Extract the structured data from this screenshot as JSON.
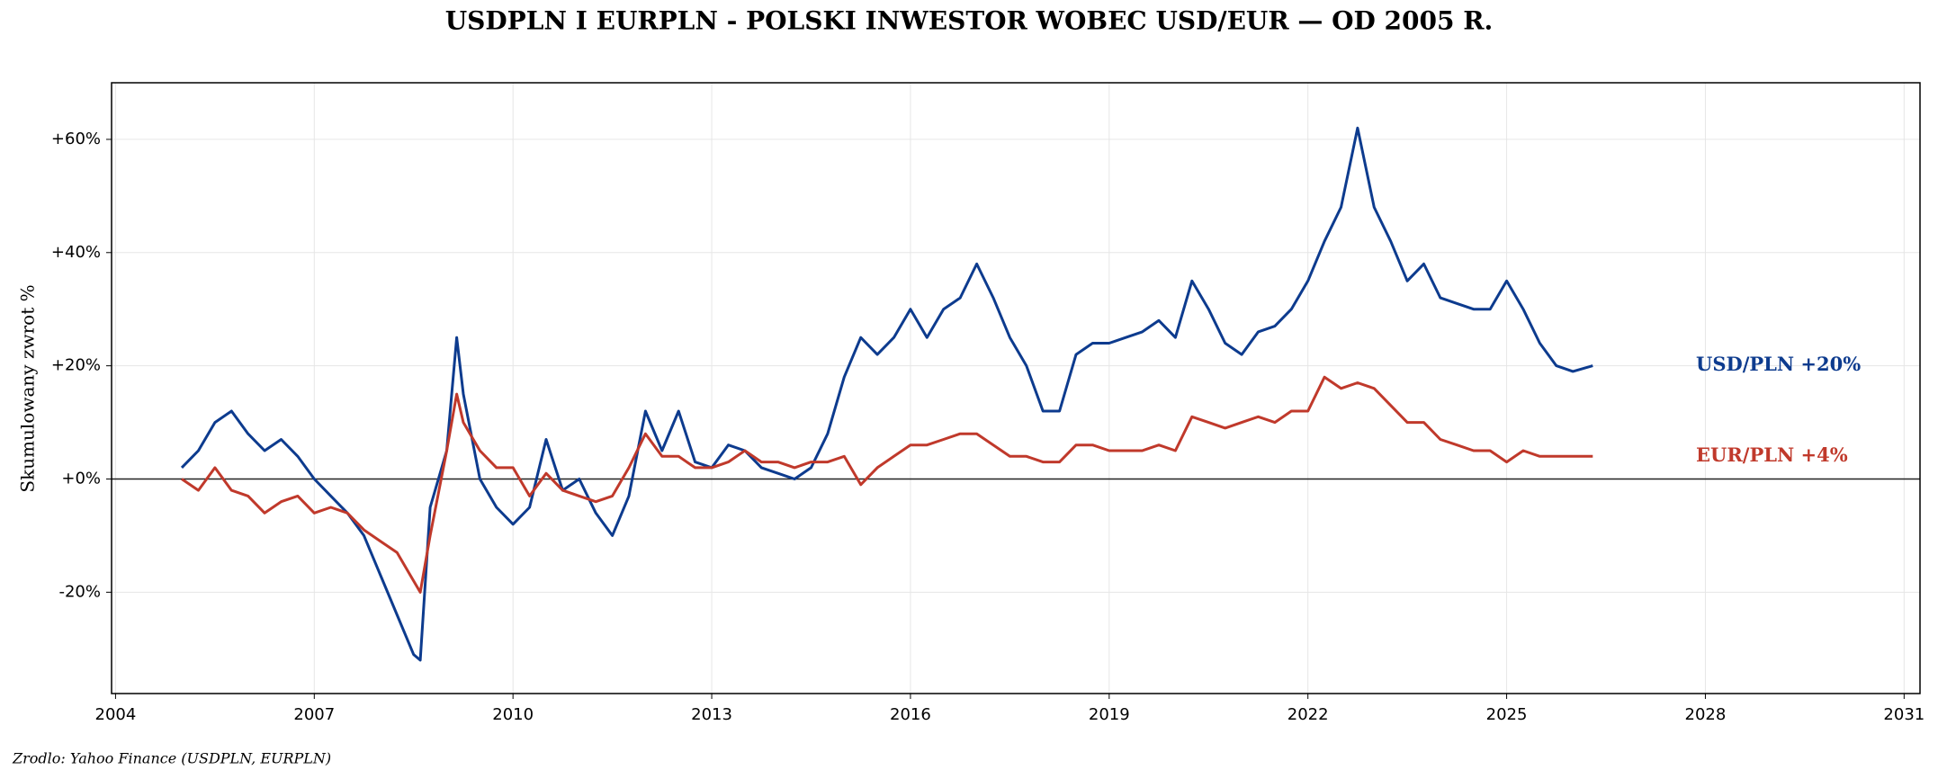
{
  "chart_data": {
    "type": "line",
    "title": "USDPLN I EURPLN - POLSKI INWESTOR WOBEC USD/EUR — OD 2005 R.",
    "ylabel": "Skumulowany zwrot %",
    "source": "Zrodlo: Yahoo Finance (USDPLN, EURPLN)",
    "grid": true,
    "xlim": [
      2003.94,
      2031.24
    ],
    "xticks": [
      2004,
      2007,
      2010,
      2013,
      2016,
      2019,
      2022,
      2025,
      2028,
      2031
    ],
    "ylim": [
      -37.9,
      70
    ],
    "yticks": [
      {
        "value": -20,
        "label": "-20%"
      },
      {
        "value": 0,
        "label": "+0%"
      },
      {
        "value": 20,
        "label": "+20%"
      },
      {
        "value": 40,
        "label": "+40%"
      },
      {
        "value": 60,
        "label": "+60%"
      }
    ],
    "x": [
      2005,
      2005.25,
      2005.5,
      2005.75,
      2006,
      2006.25,
      2006.5,
      2006.75,
      2007,
      2007.25,
      2007.5,
      2007.75,
      2008,
      2008.25,
      2008.5,
      2008.6,
      2008.75,
      2009,
      2009.15,
      2009.25,
      2009.5,
      2009.75,
      2010,
      2010.25,
      2010.5,
      2010.75,
      2011,
      2011.25,
      2011.5,
      2011.75,
      2012,
      2012.25,
      2012.5,
      2012.75,
      2013,
      2013.25,
      2013.5,
      2013.75,
      2014,
      2014.25,
      2014.5,
      2014.75,
      2015,
      2015.25,
      2015.5,
      2015.75,
      2016,
      2016.25,
      2016.5,
      2016.75,
      2017,
      2017.25,
      2017.5,
      2017.75,
      2018,
      2018.25,
      2018.5,
      2018.75,
      2019,
      2019.25,
      2019.5,
      2019.75,
      2020,
      2020.25,
      2020.5,
      2020.75,
      2021,
      2021.25,
      2021.5,
      2021.75,
      2022,
      2022.25,
      2022.5,
      2022.75,
      2023,
      2023.25,
      2023.5,
      2023.75,
      2024,
      2024.25,
      2024.5,
      2024.75,
      2025,
      2025.25,
      2025.5,
      2025.75,
      2026,
      2026.3
    ],
    "series": [
      {
        "label": "USD/PLN  +20%",
        "color": "#0d3b8e",
        "values": [
          2,
          5,
          10,
          12,
          8,
          5,
          7,
          4,
          0,
          -3,
          -6,
          -10,
          -17,
          -24,
          -31,
          -32,
          -5,
          5,
          25,
          15,
          0,
          -5,
          -8,
          -5,
          7,
          -2,
          0,
          -6,
          -10,
          -3,
          12,
          5,
          12,
          3,
          2,
          6,
          5,
          2,
          1,
          0,
          2,
          8,
          18,
          25,
          22,
          25,
          30,
          25,
          30,
          32,
          38,
          32,
          25,
          20,
          12,
          12,
          22,
          24,
          24,
          25,
          26,
          28,
          25,
          35,
          30,
          24,
          22,
          26,
          27,
          30,
          35,
          42,
          48,
          62,
          48,
          42,
          35,
          38,
          32,
          31,
          30,
          30,
          35,
          30,
          24,
          20,
          19,
          20
        ]
      },
      {
        "label": "EUR/PLN  +4%",
        "color": "#c0392b",
        "values": [
          0,
          -2,
          2,
          -2,
          -3,
          -6,
          -4,
          -3,
          -6,
          -5,
          -6,
          -9,
          -11,
          -13,
          -18,
          -20,
          -10,
          5,
          15,
          10,
          5,
          2,
          2,
          -3,
          1,
          -2,
          -3,
          -4,
          -3,
          2,
          8,
          4,
          4,
          2,
          2,
          3,
          5,
          3,
          3,
          2,
          3,
          3,
          4,
          -1,
          2,
          4,
          6,
          6,
          7,
          8,
          8,
          6,
          4,
          4,
          3,
          3,
          6,
          6,
          5,
          5,
          5,
          6,
          5,
          11,
          10,
          9,
          10,
          11,
          10,
          12,
          12,
          18,
          16,
          17,
          16,
          13,
          10,
          10,
          7,
          6,
          5,
          5,
          3,
          5,
          4,
          4,
          4,
          4
        ]
      }
    ]
  }
}
